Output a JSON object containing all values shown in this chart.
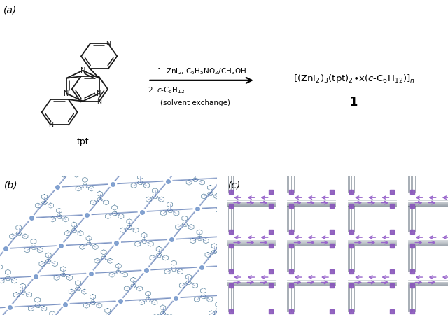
{
  "panel_a_label": "(a)",
  "panel_b_label": "(b)",
  "panel_c_label": "(c)",
  "reaction_step1": "1. ZnI$_2$, C$_6$H$_5$NO$_2$/CH$_3$OH",
  "reaction_step2_italic": "c",
  "reaction_step2": "2. $\\it{c}$-C$_6$H$_{12}$",
  "reaction_step2b": "(solvent exchange)",
  "tpt_label": "tpt",
  "bg_color": "#ffffff",
  "text_color": "#000000",
  "label_fontsize": 10,
  "arrow_color": "#000000",
  "b_bg": "#f5f8ff",
  "c_bg": "#dde4ee"
}
